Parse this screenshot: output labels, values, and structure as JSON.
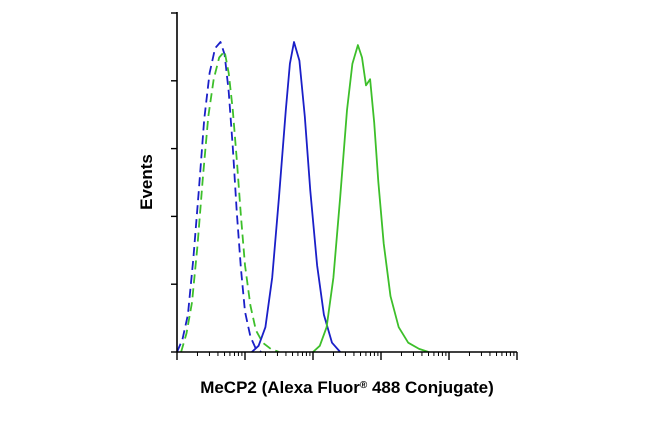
{
  "chart_data": {
    "type": "line",
    "title": "",
    "xlabel_main": "MeCP2 (Alexa Fluor",
    "xlabel_reg": "®",
    "xlabel_tail": " 488 Conjugate)",
    "ylabel": "Events",
    "xscale": "log",
    "xlim": [
      0,
      5
    ],
    "ylim": [
      0,
      100
    ],
    "grid": false,
    "legend": "none",
    "series": [
      {
        "color": "#1a1fc8",
        "dash": true,
        "x": [
          0.0,
          0.08,
          0.16,
          0.24,
          0.32,
          0.4,
          0.48,
          0.56,
          0.64,
          0.7,
          0.76,
          0.82,
          0.88,
          0.94,
          1.0,
          1.08,
          1.16,
          1.24
        ],
        "y": [
          0,
          4,
          12,
          30,
          52,
          75,
          90,
          98,
          100,
          96,
          84,
          66,
          45,
          27,
          13,
          5,
          1,
          0
        ]
      },
      {
        "color": "#3dbf2a",
        "dash": true,
        "x": [
          0.06,
          0.14,
          0.22,
          0.3,
          0.38,
          0.46,
          0.54,
          0.62,
          0.7,
          0.76,
          0.82,
          0.88,
          0.94,
          1.0,
          1.08,
          1.16,
          1.26,
          1.38,
          1.5
        ],
        "y": [
          0,
          6,
          16,
          34,
          56,
          76,
          88,
          95,
          97,
          90,
          78,
          62,
          44,
          28,
          15,
          7,
          3,
          1,
          0
        ]
      },
      {
        "color": "#1a1fc8",
        "dash": false,
        "x": [
          1.1,
          1.2,
          1.3,
          1.4,
          1.5,
          1.6,
          1.66,
          1.72,
          1.8,
          1.88,
          1.96,
          2.06,
          2.16,
          2.28,
          2.4
        ],
        "y": [
          0,
          2,
          8,
          24,
          50,
          78,
          93,
          100,
          94,
          76,
          52,
          28,
          12,
          3,
          0
        ]
      },
      {
        "color": "#3dbf2a",
        "dash": false,
        "x": [
          2.0,
          2.1,
          2.2,
          2.3,
          2.4,
          2.5,
          2.58,
          2.66,
          2.72,
          2.78,
          2.84,
          2.9,
          2.96,
          3.04,
          3.14,
          3.26,
          3.4,
          3.56,
          3.7
        ],
        "y": [
          0,
          2,
          8,
          24,
          50,
          78,
          93,
          99,
          95,
          86,
          88,
          74,
          55,
          35,
          18,
          8,
          3,
          1,
          0
        ]
      }
    ]
  }
}
